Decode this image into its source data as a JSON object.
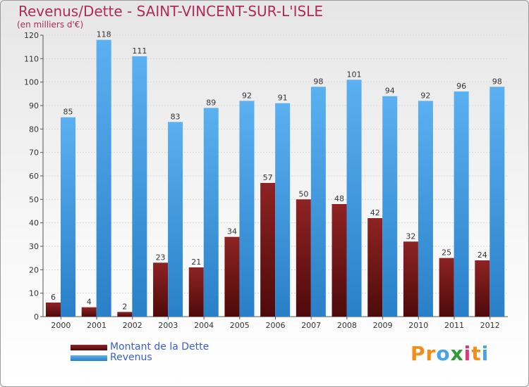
{
  "title": "Revenus/Dette - SAINT-VINCENT-SUR-L'ISLE",
  "subtitle": "(en milliers d'€)",
  "colors": {
    "dette": "#7a1515",
    "revenus": "#4aa3e8",
    "title": "#b02a5b",
    "legend_text": "#3a5fcd"
  },
  "legend": {
    "dette": "Montant de la Dette",
    "revenus": "Revenus"
  },
  "logo": {
    "text": "Proxiti",
    "letters": [
      "P",
      "r",
      "o",
      "x",
      "i",
      "t",
      "i"
    ],
    "colors": [
      "#f28c1a",
      "#f28c1a",
      "#4aa3e8",
      "#2e9b3a",
      "#d93a7a",
      "#f28c1a",
      "#4aa3e8"
    ]
  },
  "chart_data": {
    "type": "bar",
    "title": "Revenus/Dette - SAINT-VINCENT-SUR-L'ISLE",
    "ylabel": "(en milliers d'€)",
    "xlabel": "",
    "ylim": [
      0,
      120
    ],
    "yticks": [
      0,
      10,
      20,
      30,
      40,
      50,
      60,
      70,
      80,
      90,
      100,
      110,
      120
    ],
    "grid": true,
    "legend_position": "bottom-left",
    "categories": [
      "2000",
      "2001",
      "2002",
      "2003",
      "2004",
      "2005",
      "2006",
      "2007",
      "2008",
      "2009",
      "2010",
      "2011",
      "2012"
    ],
    "series": [
      {
        "name": "Montant de la Dette",
        "values": [
          6,
          4,
          2,
          23,
          21,
          34,
          57,
          50,
          48,
          42,
          32,
          25,
          24
        ]
      },
      {
        "name": "Revenus",
        "values": [
          85,
          118,
          111,
          83,
          89,
          92,
          91,
          98,
          101,
          94,
          92,
          96,
          98
        ]
      }
    ]
  }
}
